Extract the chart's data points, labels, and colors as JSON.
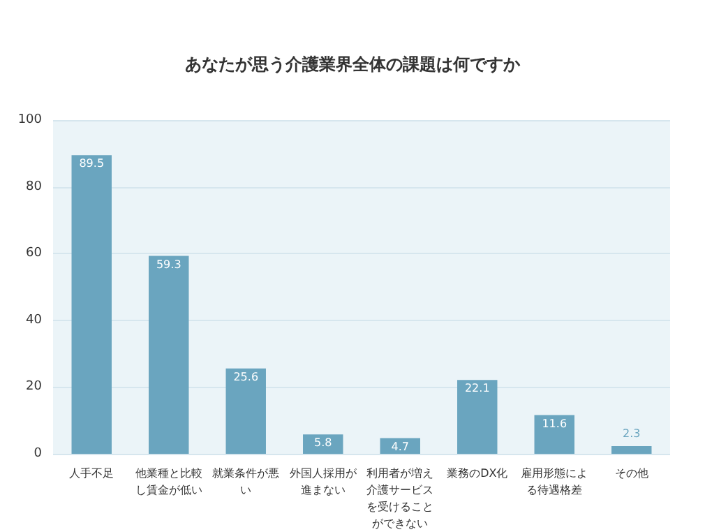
{
  "chart_data": {
    "type": "bar",
    "title": "あなたが思う介護業界全体の課題は何ですか",
    "categories": [
      "人手不足",
      "他業種と比較し賃金が低い",
      "就業条件が悪い",
      "外国人採用が進まない",
      "利用者が増え介護サービスを受けることができない",
      "業務のDX化",
      "雇用形態による待遇格差",
      "その他"
    ],
    "values": [
      89.5,
      59.3,
      25.6,
      5.8,
      4.7,
      22.1,
      11.6,
      2.3
    ],
    "color": "#6aa5bf",
    "ylim": [
      0,
      100
    ],
    "yticks": [
      0,
      20,
      40,
      60,
      80,
      100
    ],
    "grid": "y",
    "data_labels": true
  }
}
